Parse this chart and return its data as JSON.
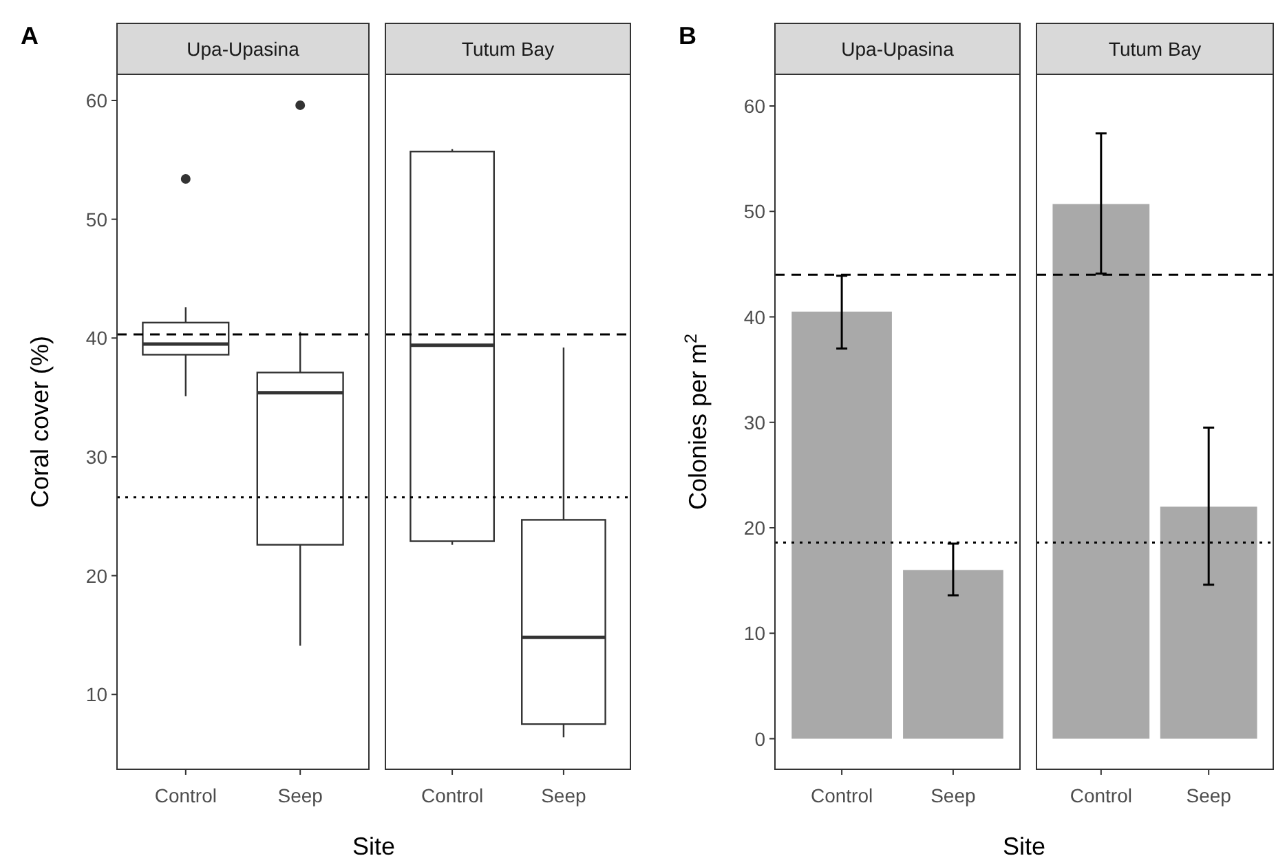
{
  "chart_data": [
    {
      "type": "box",
      "title": "Upa-Upasina",
      "annotations": [
        "A"
      ],
      "ylabel": "Coral cover (%)",
      "xlabel": "Site",
      "categories": [
        "Control",
        "Seep"
      ],
      "boxes": [
        {
          "low": 35.1,
          "q1": 38.6,
          "median": 39.5,
          "q3": 41.3,
          "high": 42.6,
          "outliers": [
            53.4
          ]
        },
        {
          "low": 14.1,
          "q1": 22.6,
          "median": 35.4,
          "q3": 37.1,
          "high": 40.5,
          "outliers": [
            59.6
          ]
        }
      ],
      "ylim": [
        3.7,
        62.2
      ],
      "yticks": [
        10,
        20,
        30,
        40,
        50,
        60
      ],
      "ref_lines": [
        {
          "axis": "y",
          "value": 40.3,
          "line_style": "dashed"
        },
        {
          "axis": "y",
          "value": 26.6,
          "line_style": "dotted"
        }
      ]
    },
    {
      "type": "box",
      "title": "Tutum Bay",
      "categories": [
        "Control",
        "Seep"
      ],
      "boxes": [
        {
          "low": 22.6,
          "q1": 22.9,
          "median": 39.4,
          "q3": 55.7,
          "high": 55.9
        },
        {
          "low": 6.4,
          "q1": 7.5,
          "median": 14.8,
          "q3": 24.7,
          "high": 39.2
        }
      ],
      "ylim": [
        3.7,
        62.2
      ],
      "tick_labels": "x",
      "ref_lines": [
        {
          "axis": "y",
          "value": 40.3,
          "line_style": "dashed"
        },
        {
          "axis": "y",
          "value": 26.6,
          "line_style": "dotted"
        }
      ]
    },
    {
      "type": "bar",
      "title": "Upa-Upasina",
      "annotations": [
        "B"
      ],
      "ylabel": "Colonies per m$^{2}$",
      "xlabel": "Site",
      "categories": [
        "Control",
        "Seep"
      ],
      "values": [
        40.5,
        16.0
      ],
      "color": "#a9a9a9",
      "errors": [
        [
          37.0,
          43.9
        ],
        [
          13.6,
          18.5
        ]
      ],
      "ylim": [
        -2.9,
        63
      ],
      "yticks": [
        0,
        10,
        20,
        30,
        40,
        50,
        60
      ],
      "ref_lines": [
        {
          "axis": "y",
          "value": 44.0,
          "line_style": "dashed"
        },
        {
          "axis": "y",
          "value": 18.6,
          "line_style": "dotted"
        }
      ]
    },
    {
      "type": "bar",
      "title": "Tutum Bay",
      "categories": [
        "Control",
        "Seep"
      ],
      "values": [
        50.7,
        22.0
      ],
      "color": "#a9a9a9",
      "errors": [
        [
          44.1,
          57.4
        ],
        [
          14.6,
          29.5
        ]
      ],
      "ylim": [
        -2.9,
        63
      ],
      "tick_labels": "x",
      "ref_lines": [
        {
          "axis": "y",
          "value": 44.0,
          "line_style": "dashed"
        },
        {
          "axis": "y",
          "value": 18.6,
          "line_style": "dotted"
        }
      ]
    }
  ]
}
